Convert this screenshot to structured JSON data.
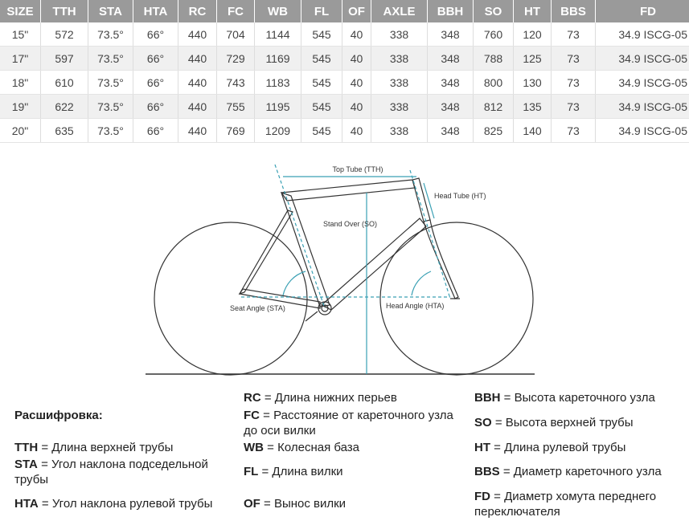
{
  "table": {
    "header": [
      "SIZE",
      "TTH",
      "STA",
      "HTA",
      "RC",
      "FC",
      "WB",
      "FL",
      "OF",
      "AXLE",
      "BBH",
      "SO",
      "HT",
      "BBS",
      "FD"
    ],
    "rows": [
      [
        "15\"",
        "572",
        "73.5°",
        "66°",
        "440",
        "704",
        "1144",
        "545",
        "40",
        "338",
        "348",
        "760",
        "120",
        "73",
        "34.9 ISCG-05"
      ],
      [
        "17\"",
        "597",
        "73.5°",
        "66°",
        "440",
        "729",
        "1169",
        "545",
        "40",
        "338",
        "348",
        "788",
        "125",
        "73",
        "34.9 ISCG-05"
      ],
      [
        "18\"",
        "610",
        "73.5°",
        "66°",
        "440",
        "743",
        "1183",
        "545",
        "40",
        "338",
        "348",
        "800",
        "130",
        "73",
        "34.9 ISCG-05"
      ],
      [
        "19\"",
        "622",
        "73.5°",
        "66°",
        "440",
        "755",
        "1195",
        "545",
        "40",
        "338",
        "348",
        "812",
        "135",
        "73",
        "34.9 ISCG-05"
      ],
      [
        "20\"",
        "635",
        "73.5°",
        "66°",
        "440",
        "769",
        "1209",
        "545",
        "40",
        "338",
        "348",
        "825",
        "140",
        "73",
        "34.9 ISCG-05"
      ]
    ]
  },
  "diagram": {
    "top_tube": "Top Tube (TTH)",
    "head_tube": "Head Tube (HT)",
    "stand_over": "Stand Over (SO)",
    "seat_angle": "Seat Angle (STA)",
    "head_angle": "Head Angle (HTA)"
  },
  "legend": {
    "title": "Расшифровка:",
    "items": [
      {
        "abbr": "TTH",
        "text": "= Длина верхней трубы"
      },
      {
        "abbr": "STA",
        "text": "= Угол наклона подседельной трубы"
      },
      {
        "abbr": "HTA",
        "text": "= Угол наклона рулевой трубы"
      },
      {
        "abbr": "RC",
        "text": "= Длина нижних перьев"
      },
      {
        "abbr": "FC",
        "text": "= Расстояние от кареточного узла до оси вилки"
      },
      {
        "abbr": "WB",
        "text": "= Колесная база"
      },
      {
        "abbr": "FL",
        "text": "= Длина вилки"
      },
      {
        "abbr": "OF",
        "text": "= Вынос вилки"
      },
      {
        "abbr": "BBH",
        "text": "= Высота кареточного узла"
      },
      {
        "abbr": "SO",
        "text": "= Высота верхней трубы"
      },
      {
        "abbr": "HT",
        "text": "= Длина рулевой трубы"
      },
      {
        "abbr": "BBS",
        "text": "= Диаметр кареточного узла"
      },
      {
        "abbr": "FD",
        "text": "= Диаметр хомута переднего переключателя"
      }
    ]
  }
}
